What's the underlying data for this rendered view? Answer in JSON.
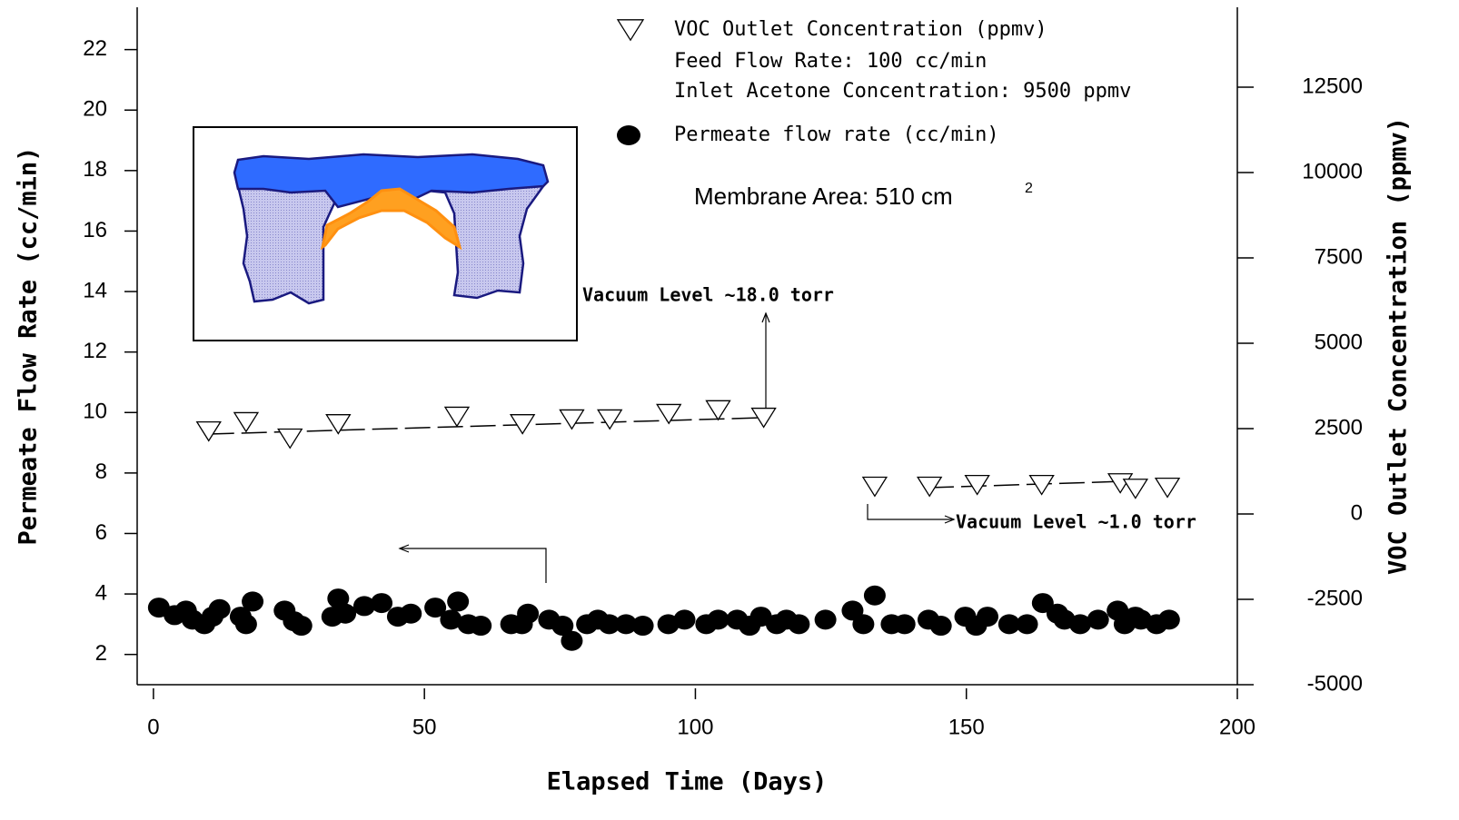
{
  "chart_data": {
    "type": "scatter",
    "xlabel": "Elapsed Time (Days)",
    "ylabel": "Permeate Flow Rate (cc/min)",
    "y2label": "VOC Outlet Concentration (ppmv)",
    "xlim": [
      -3,
      200
    ],
    "xticks": [
      0,
      50,
      100,
      150,
      200
    ],
    "ylim": [
      1,
      23.4
    ],
    "yticks": [
      2,
      4,
      6,
      8,
      10,
      12,
      14,
      16,
      18,
      20,
      22
    ],
    "y2lim": [
      -5000,
      14840
    ],
    "y2ticks": [
      -5000,
      -2500,
      0,
      2500,
      5000,
      7500,
      10000,
      12500
    ],
    "series": [
      {
        "name": "VOC Outlet Concentration (ppmv)",
        "axis": "y2",
        "marker": "triangle",
        "color": "#000000",
        "x": [
          10.2,
          17.1,
          25.2,
          34.1,
          56.0,
          68.1,
          77.2,
          84.2,
          95.1,
          104.2,
          112.6,
          133.1,
          143.2,
          152.0,
          163.9,
          178.4,
          181.2,
          187.1
        ],
        "values": [
          2420,
          2690,
          2210,
          2630,
          2850,
          2630,
          2770,
          2770,
          2930,
          3040,
          2820,
          800,
          800,
          850,
          850,
          900,
          740,
          770
        ]
      },
      {
        "name": "Permeate flow rate (cc/min)",
        "axis": "y",
        "marker": "circle",
        "color": "#000000",
        "x": [
          1.0,
          3.9,
          6.0,
          7.2,
          9.4,
          10.9,
          12.2,
          16.1,
          17.1,
          18.3,
          24.2,
          25.9,
          27.3,
          33.0,
          34.1,
          35.4,
          38.9,
          42.1,
          45.1,
          47.5,
          52.0,
          54.9,
          56.2,
          58.1,
          60.4,
          66.0,
          68.0,
          69.1,
          73.0,
          75.5,
          77.2,
          80.0,
          82.0,
          84.1,
          87.2,
          90.3,
          95.0,
          98.0,
          102.0,
          104.2,
          107.7,
          110.0,
          112.1,
          115.0,
          116.8,
          119.1,
          124.0,
          129.0,
          131.0,
          133.1,
          136.2,
          138.6,
          143.0,
          145.3,
          149.8,
          151.8,
          153.9,
          157.9,
          161.2,
          164.1,
          166.8,
          168.1,
          171.0,
          174.3,
          177.9,
          179.2,
          181.2,
          182.2,
          185.1,
          187.4
        ],
        "values": [
          3.55,
          3.3,
          3.45,
          3.15,
          3.0,
          3.25,
          3.5,
          3.25,
          3.0,
          3.75,
          3.45,
          3.1,
          2.95,
          3.25,
          3.85,
          3.35,
          3.6,
          3.7,
          3.25,
          3.35,
          3.55,
          3.15,
          3.75,
          3.0,
          2.95,
          3.0,
          3.0,
          3.35,
          3.15,
          2.95,
          2.45,
          3.0,
          3.15,
          3.0,
          3.0,
          2.95,
          3.0,
          3.15,
          3.0,
          3.15,
          3.15,
          2.95,
          3.25,
          3.0,
          3.15,
          3.0,
          3.15,
          3.45,
          3.0,
          3.95,
          3.0,
          3.0,
          3.15,
          2.95,
          3.25,
          2.95,
          3.25,
          3.0,
          3.0,
          3.7,
          3.35,
          3.15,
          3.0,
          3.15,
          3.45,
          3.0,
          3.25,
          3.15,
          3.0,
          3.15
        ]
      }
    ],
    "trend_lines": [
      {
        "axis": "y2",
        "x": [
          10.2,
          112.4
        ],
        "values": [
          2340,
          2820
        ]
      },
      {
        "axis": "y2",
        "x": [
          143.0,
          178.0
        ],
        "values": [
          770,
          950
        ]
      }
    ],
    "legend_notes": [
      "Feed Flow Rate: 100 cc/min",
      "Inlet Acetone Concentration: 9500 ppmv"
    ],
    "membrane_area": {
      "text": "Membrane Area:  510 cm",
      "superscript": "2"
    },
    "annotations": [
      "Vacuum Level ~18.0 torr",
      "Vacuum Level ~1.0 torr"
    ]
  }
}
